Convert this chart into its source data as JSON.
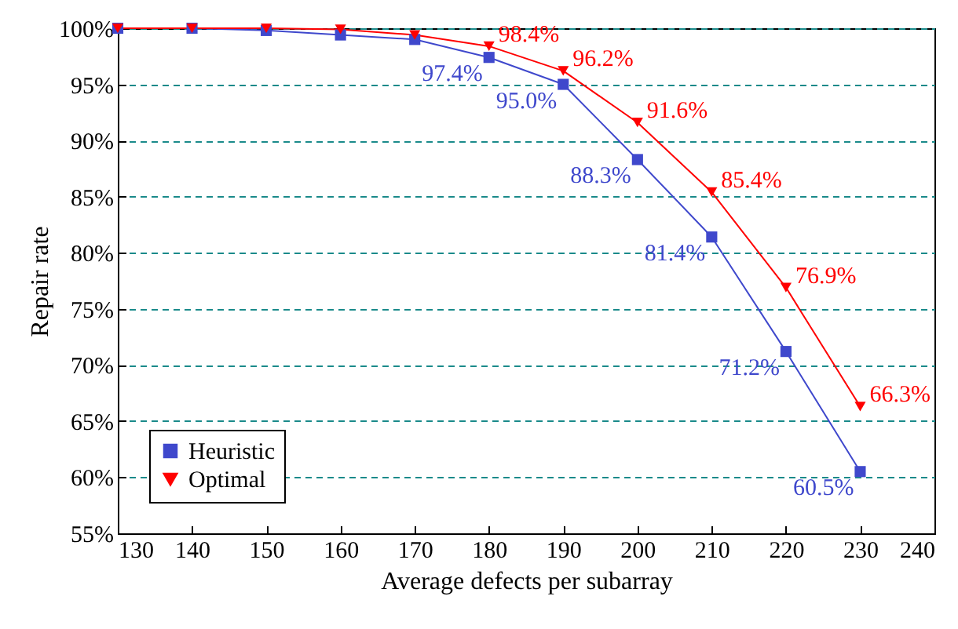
{
  "chart_data": {
    "type": "line",
    "xlabel": "Average defects per subarray",
    "ylabel": "Repair rate",
    "x": [
      130,
      140,
      150,
      160,
      170,
      180,
      190,
      200,
      210,
      220,
      230
    ],
    "series": [
      {
        "name": "Heuristic",
        "color": "#3f48cc",
        "marker": "square",
        "values": [
          100,
          100,
          99.8,
          99.4,
          99.0,
          97.4,
          95.0,
          88.3,
          81.4,
          71.2,
          60.5
        ],
        "value_labels": [
          null,
          null,
          null,
          null,
          null,
          "97.4%",
          "95.0%",
          "88.3%",
          "81.4%",
          "71.2%",
          "60.5%"
        ]
      },
      {
        "name": "Optimal",
        "color": "#ff0000",
        "marker": "triangle",
        "values": [
          100,
          100,
          100,
          99.9,
          99.4,
          98.4,
          96.2,
          91.6,
          85.4,
          76.9,
          66.3
        ],
        "value_labels": [
          null,
          null,
          null,
          null,
          null,
          "98.4%",
          "96.2%",
          "91.6%",
          "85.4%",
          "76.9%",
          "66.3%"
        ]
      }
    ],
    "xlim": [
      130,
      240
    ],
    "xticks": [
      130,
      140,
      150,
      160,
      170,
      180,
      190,
      200,
      210,
      220,
      230,
      240
    ],
    "ylim": [
      55,
      100
    ],
    "yticks": [
      {
        "value": 55,
        "label": "55%"
      },
      {
        "value": 60,
        "label": "60%"
      },
      {
        "value": 65,
        "label": "65%"
      },
      {
        "value": 70,
        "label": "70%"
      },
      {
        "value": 75,
        "label": "75%"
      },
      {
        "value": 80,
        "label": "80%"
      },
      {
        "value": 85,
        "label": "85%"
      },
      {
        "value": 90,
        "label": "90%"
      },
      {
        "value": 95,
        "label": "95%"
      },
      {
        "value": 100,
        "label": "100%"
      }
    ],
    "grid": "y",
    "legend": "bottom left",
    "line_style": "solid"
  }
}
